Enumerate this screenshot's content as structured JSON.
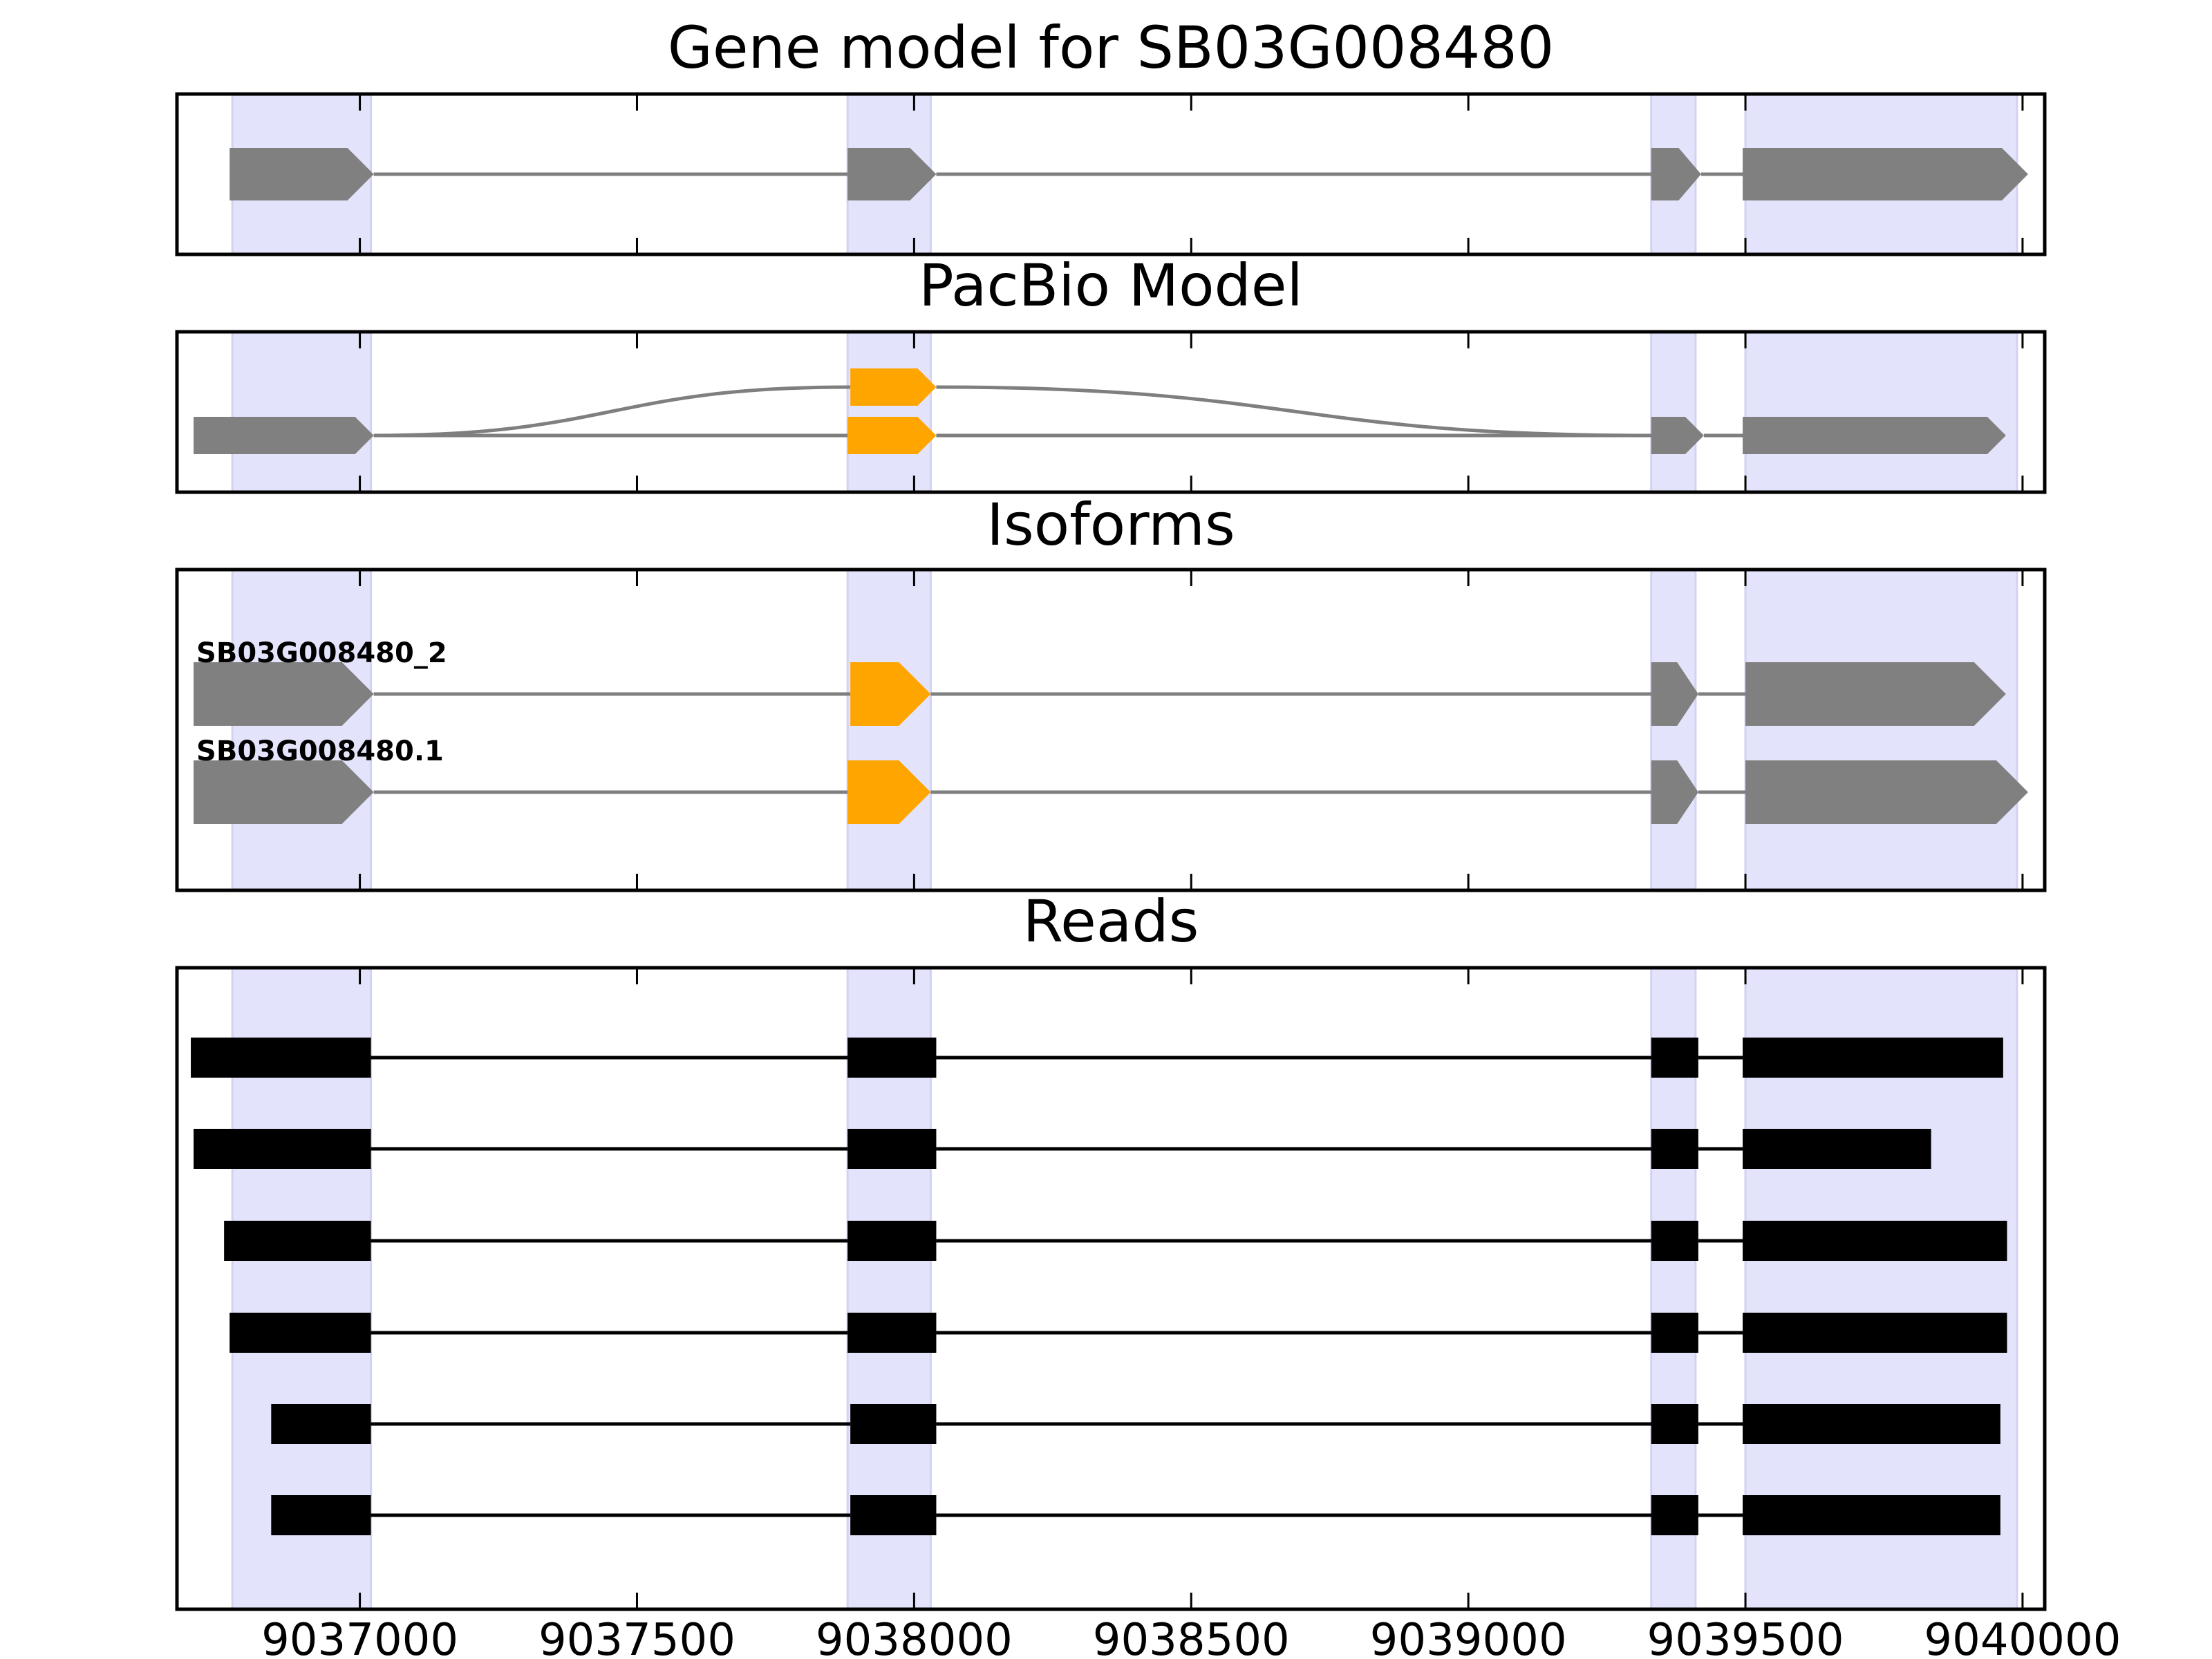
{
  "chart_data": {
    "type": "gene-structure",
    "gene": "SB03G008480",
    "xlim": [
      9036670,
      9040040
    ],
    "xticks": [
      9037000,
      9037500,
      9038000,
      9038500,
      9039000,
      9039500,
      9040000
    ],
    "xtick_labels": [
      "9037000",
      "9037500",
      "9038000",
      "9038500",
      "9039000",
      "9039500",
      "9040000"
    ],
    "grid": false,
    "colors": {
      "exon_gray": "#808080",
      "alt_exon": "#ffa500",
      "read": "#000000",
      "highlight": "#e3e3fb",
      "intron": "#7f7f7f"
    },
    "highlight_regions": [
      [
        9036770,
        9037020
      ],
      [
        9037880,
        9038030
      ],
      [
        9039330,
        9039410
      ],
      [
        9039500,
        9039990
      ]
    ],
    "panels": [
      {
        "id": "gene-model",
        "title": "Gene model for SB03G008480",
        "models": [
          {
            "label": "",
            "exons": [
              {
                "start": 9036765,
                "end": 9037025,
                "color": "gray"
              },
              {
                "start": 9037880,
                "end": 9038040,
                "color": "gray"
              },
              {
                "start": 9039330,
                "end": 9039420,
                "color": "gray"
              },
              {
                "start": 9039495,
                "end": 9040010,
                "color": "gray"
              }
            ]
          }
        ]
      },
      {
        "id": "pacbio-model",
        "title": "PacBio Model",
        "splice_graph": true,
        "nodes": [
          {
            "start": 9036700,
            "end": 9037025,
            "level": 0,
            "color": "gray"
          },
          {
            "start": 9037885,
            "end": 9038040,
            "level": 1,
            "color": "orange"
          },
          {
            "start": 9037880,
            "end": 9038040,
            "level": 0,
            "color": "orange"
          },
          {
            "start": 9039330,
            "end": 9039425,
            "level": 0,
            "color": "gray"
          },
          {
            "start": 9039495,
            "end": 9039970,
            "level": 0,
            "color": "gray"
          }
        ],
        "edges": [
          {
            "from": 9037025,
            "to": 9037880,
            "type": "straight"
          },
          {
            "from": 9038040,
            "to": 9039330,
            "type": "straight"
          },
          {
            "from": 9039425,
            "to": 9039495,
            "type": "straight"
          },
          {
            "from": 9037025,
            "to": 9037885,
            "type": "curve-up"
          },
          {
            "from": 9038040,
            "to": 9039330,
            "type": "curve-down"
          }
        ]
      },
      {
        "id": "isoforms",
        "title": "Isoforms",
        "models": [
          {
            "label": "SB03G008480_2",
            "exons": [
              {
                "start": 9036700,
                "end": 9037025,
                "color": "gray"
              },
              {
                "start": 9037885,
                "end": 9038030,
                "color": "orange"
              },
              {
                "start": 9039330,
                "end": 9039415,
                "color": "gray"
              },
              {
                "start": 9039500,
                "end": 9039970,
                "color": "gray"
              }
            ]
          },
          {
            "label": "SB03G008480.1",
            "exons": [
              {
                "start": 9036700,
                "end": 9037025,
                "color": "gray"
              },
              {
                "start": 9037880,
                "end": 9038030,
                "color": "orange"
              },
              {
                "start": 9039330,
                "end": 9039415,
                "color": "gray"
              },
              {
                "start": 9039500,
                "end": 9040010,
                "color": "gray"
              }
            ]
          }
        ]
      },
      {
        "id": "reads",
        "title": "Reads",
        "reads": [
          [
            [
              9036695,
              9037020
            ],
            [
              9037880,
              9038040
            ],
            [
              9039330,
              9039415
            ],
            [
              9039495,
              9039965
            ]
          ],
          [
            [
              9036700,
              9037020
            ],
            [
              9037880,
              9038040
            ],
            [
              9039330,
              9039415
            ],
            [
              9039495,
              9039835
            ]
          ],
          [
            [
              9036755,
              9037020
            ],
            [
              9037880,
              9038040
            ],
            [
              9039330,
              9039415
            ],
            [
              9039495,
              9039972
            ]
          ],
          [
            [
              9036765,
              9037020
            ],
            [
              9037880,
              9038040
            ],
            [
              9039330,
              9039415
            ],
            [
              9039495,
              9039972
            ]
          ],
          [
            [
              9036840,
              9037020
            ],
            [
              9037885,
              9038040
            ],
            [
              9039330,
              9039415
            ],
            [
              9039495,
              9039960
            ]
          ],
          [
            [
              9036840,
              9037020
            ],
            [
              9037885,
              9038040
            ],
            [
              9039330,
              9039415
            ],
            [
              9039495,
              9039960
            ]
          ]
        ]
      }
    ]
  }
}
